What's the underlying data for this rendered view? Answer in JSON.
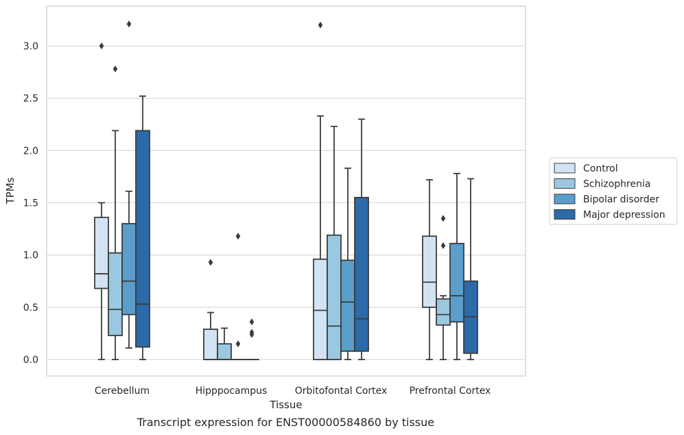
{
  "chart_data": {
    "type": "box",
    "xlabel": "Tissue",
    "ylabel": "TPMs",
    "caption": "Transcript expression for ENST00000584860 by tissue",
    "ylim": [
      -0.15,
      3.4
    ],
    "yticks": [
      "0.0",
      "0.5",
      "1.0",
      "1.5",
      "2.0",
      "2.5",
      "3.0"
    ],
    "categories": [
      "Cerebellum",
      "Hipppocampus",
      "Orbitofontal Cortex",
      "Prefrontal Cortex"
    ],
    "grid": "horizontal",
    "legend_position": "right",
    "series": [
      {
        "name": "Control",
        "color": "#d2e3f3",
        "boxes": [
          {
            "whislo": 0.0,
            "q1": 0.68,
            "med": 0.82,
            "q3": 1.36,
            "whishi": 1.5,
            "fliers": [
              3.0
            ]
          },
          {
            "whislo": 0.0,
            "q1": 0.0,
            "med": 0.0,
            "q3": 0.29,
            "whishi": 0.45,
            "fliers": [
              0.93
            ]
          },
          {
            "whislo": 0.0,
            "q1": 0.0,
            "med": 0.47,
            "q3": 0.96,
            "whishi": 2.33,
            "fliers": [
              3.2
            ]
          },
          {
            "whislo": 0.0,
            "q1": 0.5,
            "med": 0.74,
            "q3": 1.18,
            "whishi": 1.72,
            "fliers": []
          }
        ]
      },
      {
        "name": "Schizophrenia",
        "color": "#9ac8e0",
        "boxes": [
          {
            "whislo": 0.0,
            "q1": 0.23,
            "med": 0.48,
            "q3": 1.02,
            "whishi": 2.19,
            "fliers": [
              2.78
            ]
          },
          {
            "whislo": 0.0,
            "q1": 0.0,
            "med": 0.0,
            "q3": 0.15,
            "whishi": 0.3,
            "fliers": []
          },
          {
            "whislo": 0.0,
            "q1": 0.0,
            "med": 0.32,
            "q3": 1.19,
            "whishi": 2.23,
            "fliers": []
          },
          {
            "whislo": 0.0,
            "q1": 0.33,
            "med": 0.43,
            "q3": 0.58,
            "whishi": 0.61,
            "fliers": [
              1.09,
              1.35
            ]
          }
        ]
      },
      {
        "name": "Bipolar disorder",
        "color": "#5a9ec9",
        "boxes": [
          {
            "whislo": 0.11,
            "q1": 0.43,
            "med": 0.75,
            "q3": 1.3,
            "whishi": 1.61,
            "fliers": [
              3.21
            ]
          },
          {
            "whislo": 0.0,
            "q1": 0.0,
            "med": 0.0,
            "q3": 0.0,
            "whishi": 0.0,
            "fliers": [
              0.15,
              1.18
            ]
          },
          {
            "whislo": 0.0,
            "q1": 0.08,
            "med": 0.55,
            "q3": 0.95,
            "whishi": 1.83,
            "fliers": []
          },
          {
            "whislo": 0.0,
            "q1": 0.36,
            "med": 0.61,
            "q3": 1.11,
            "whishi": 1.78,
            "fliers": []
          }
        ]
      },
      {
        "name": "Major depression",
        "color": "#2c6aaa",
        "boxes": [
          {
            "whislo": 0.0,
            "q1": 0.12,
            "med": 0.53,
            "q3": 2.19,
            "whishi": 2.52,
            "fliers": []
          },
          {
            "whislo": 0.0,
            "q1": 0.0,
            "med": 0.0,
            "q3": 0.0,
            "whishi": 0.0,
            "fliers": [
              0.24,
              0.26,
              0.36
            ]
          },
          {
            "whislo": 0.0,
            "q1": 0.08,
            "med": 0.39,
            "q3": 1.55,
            "whishi": 2.3,
            "fliers": []
          },
          {
            "whislo": 0.0,
            "q1": 0.06,
            "med": 0.41,
            "q3": 0.75,
            "whishi": 1.73,
            "fliers": []
          }
        ]
      }
    ]
  }
}
